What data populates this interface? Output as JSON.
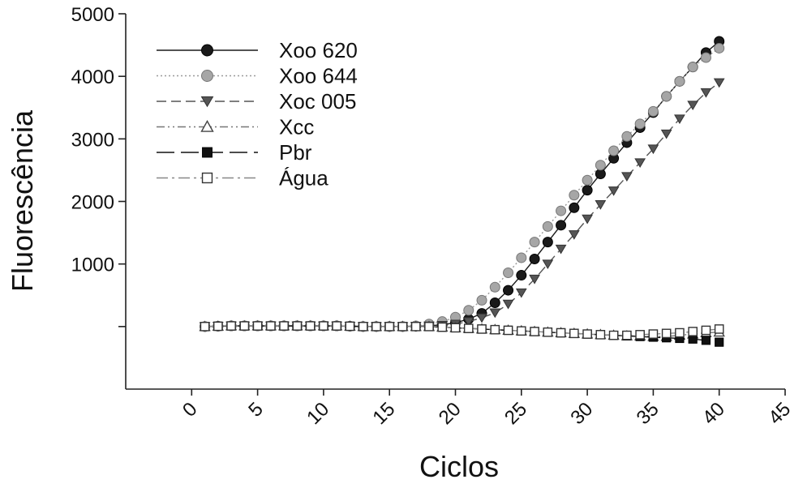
{
  "chart_data": {
    "type": "line",
    "title": "",
    "xlabel": "Ciclos",
    "ylabel": "Fluorescência",
    "xlim": [
      -5,
      45
    ],
    "ylim": [
      -1000,
      5000
    ],
    "x_ticks": [
      0,
      5,
      10,
      15,
      20,
      25,
      30,
      35,
      40,
      45
    ],
    "x_tick_labels": [
      "0",
      "5",
      "10",
      "15",
      "20",
      "25",
      "30",
      "35",
      "40",
      "45"
    ],
    "y_ticks": [
      0,
      1000,
      2000,
      3000,
      4000,
      5000
    ],
    "y_tick_labels": [
      "",
      "1000",
      "2000",
      "3000",
      "4000",
      "5000"
    ],
    "grid": false,
    "legend_position": "top-left",
    "x": [
      1,
      2,
      3,
      4,
      5,
      6,
      7,
      8,
      9,
      10,
      11,
      12,
      13,
      14,
      15,
      16,
      17,
      18,
      19,
      20,
      21,
      22,
      23,
      24,
      25,
      26,
      27,
      28,
      29,
      30,
      31,
      32,
      33,
      34,
      35,
      36,
      37,
      38,
      39,
      40
    ],
    "series": [
      {
        "name": "Xoo 620",
        "line": "solid",
        "marker": "circle-filled",
        "color": "#1a1a1a",
        "values": [
          0,
          5,
          10,
          10,
          10,
          10,
          10,
          10,
          10,
          10,
          10,
          5,
          0,
          0,
          0,
          0,
          5,
          10,
          30,
          60,
          120,
          210,
          380,
          580,
          820,
          1080,
          1350,
          1620,
          1900,
          2180,
          2440,
          2690,
          2940,
          3180,
          3420,
          3680,
          3920,
          4150,
          4380,
          4560
        ]
      },
      {
        "name": "Xoo 644",
        "line": "dotted",
        "marker": "circle-gray",
        "color": "#999999",
        "values": [
          0,
          5,
          10,
          10,
          10,
          10,
          10,
          10,
          10,
          10,
          10,
          5,
          0,
          0,
          0,
          0,
          10,
          40,
          80,
          150,
          260,
          420,
          630,
          860,
          1100,
          1350,
          1600,
          1850,
          2100,
          2340,
          2580,
          2810,
          3040,
          3240,
          3440,
          3680,
          3920,
          4150,
          4300,
          4450
        ]
      },
      {
        "name": "Xoc 005",
        "line": "dashed",
        "marker": "triangle-down",
        "color": "#555555",
        "values": [
          0,
          5,
          10,
          10,
          10,
          10,
          10,
          10,
          10,
          10,
          10,
          5,
          0,
          0,
          0,
          0,
          5,
          10,
          20,
          40,
          80,
          140,
          220,
          360,
          540,
          760,
          1000,
          1240,
          1470,
          1720,
          1950,
          2170,
          2400,
          2620,
          2840,
          3080,
          3320,
          3540,
          3740,
          3900
        ]
      },
      {
        "name": "Xcc",
        "line": "dashdot2",
        "marker": "triangle-open",
        "color": "#777777",
        "values": [
          0,
          5,
          10,
          10,
          10,
          10,
          10,
          10,
          10,
          10,
          10,
          5,
          0,
          0,
          0,
          0,
          0,
          0,
          -10,
          -20,
          -30,
          -40,
          -50,
          -60,
          -70,
          -80,
          -90,
          -100,
          -110,
          -120,
          -130,
          -140,
          -150,
          -150,
          -160,
          -160,
          -140,
          -120,
          -100,
          -90
        ]
      },
      {
        "name": "Pbr",
        "line": "longdash",
        "marker": "square-filled",
        "color": "#111111",
        "values": [
          0,
          5,
          10,
          10,
          10,
          10,
          10,
          10,
          10,
          10,
          10,
          5,
          0,
          0,
          0,
          0,
          0,
          0,
          -10,
          -20,
          -30,
          -40,
          -50,
          -60,
          -70,
          -80,
          -90,
          -100,
          -110,
          -120,
          -130,
          -140,
          -150,
          -160,
          -170,
          -180,
          -190,
          -200,
          -220,
          -250
        ]
      },
      {
        "name": "Água",
        "line": "dashdot",
        "marker": "square-open",
        "color": "#888888",
        "values": [
          0,
          5,
          10,
          10,
          10,
          10,
          10,
          10,
          10,
          10,
          10,
          5,
          0,
          0,
          0,
          0,
          0,
          0,
          -10,
          -20,
          -30,
          -40,
          -50,
          -60,
          -70,
          -80,
          -90,
          -100,
          -110,
          -120,
          -130,
          -140,
          -140,
          -130,
          -120,
          -110,
          -100,
          -80,
          -60,
          -40
        ]
      }
    ]
  }
}
